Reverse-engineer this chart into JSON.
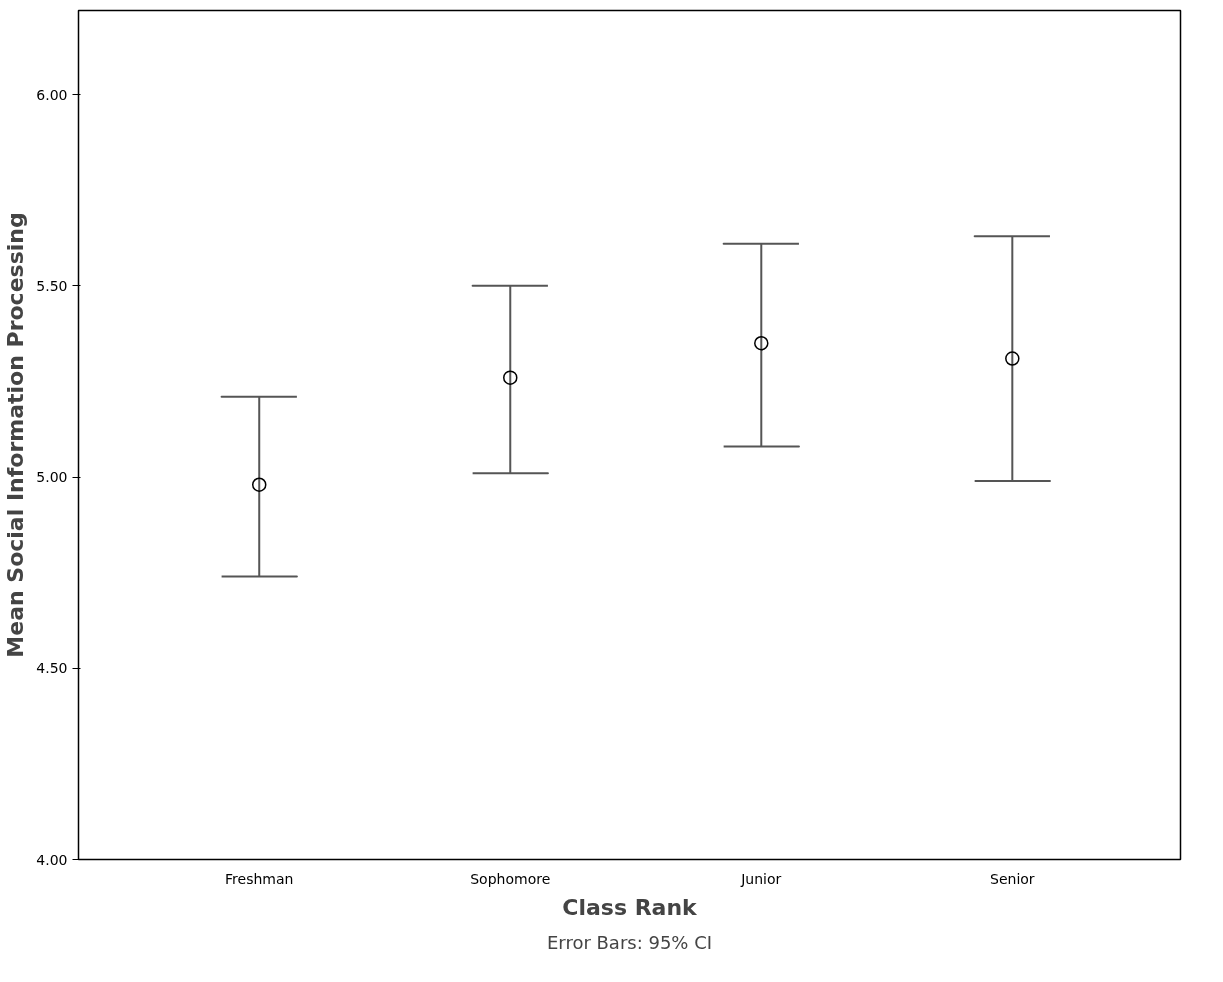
{
  "chart_data": {
    "type": "scatter",
    "xlabel": "Class Rank",
    "ylabel": "Mean Social Information Processing",
    "categories": [
      "Freshman",
      "Sophomore",
      "Junior",
      "Senior"
    ],
    "values": [
      4.98,
      5.26,
      5.35,
      5.31
    ],
    "errors": [
      [
        4.74,
        5.21
      ],
      [
        5.01,
        5.5
      ],
      [
        5.08,
        5.61
      ],
      [
        4.99,
        5.63
      ]
    ],
    "color": "#000000",
    "marker": "circle",
    "grid": false,
    "ylim": [
      4.0,
      6.22
    ],
    "yticks": [
      {
        "value": 4.0,
        "label": "4.00"
      },
      {
        "value": 4.5,
        "label": "4.50"
      },
      {
        "value": 5.0,
        "label": "5.00"
      },
      {
        "value": 5.5,
        "label": "5.50"
      },
      {
        "value": 6.0,
        "label": "6.00"
      }
    ],
    "annotations": [
      "Error Bars: 95% CI"
    ]
  }
}
